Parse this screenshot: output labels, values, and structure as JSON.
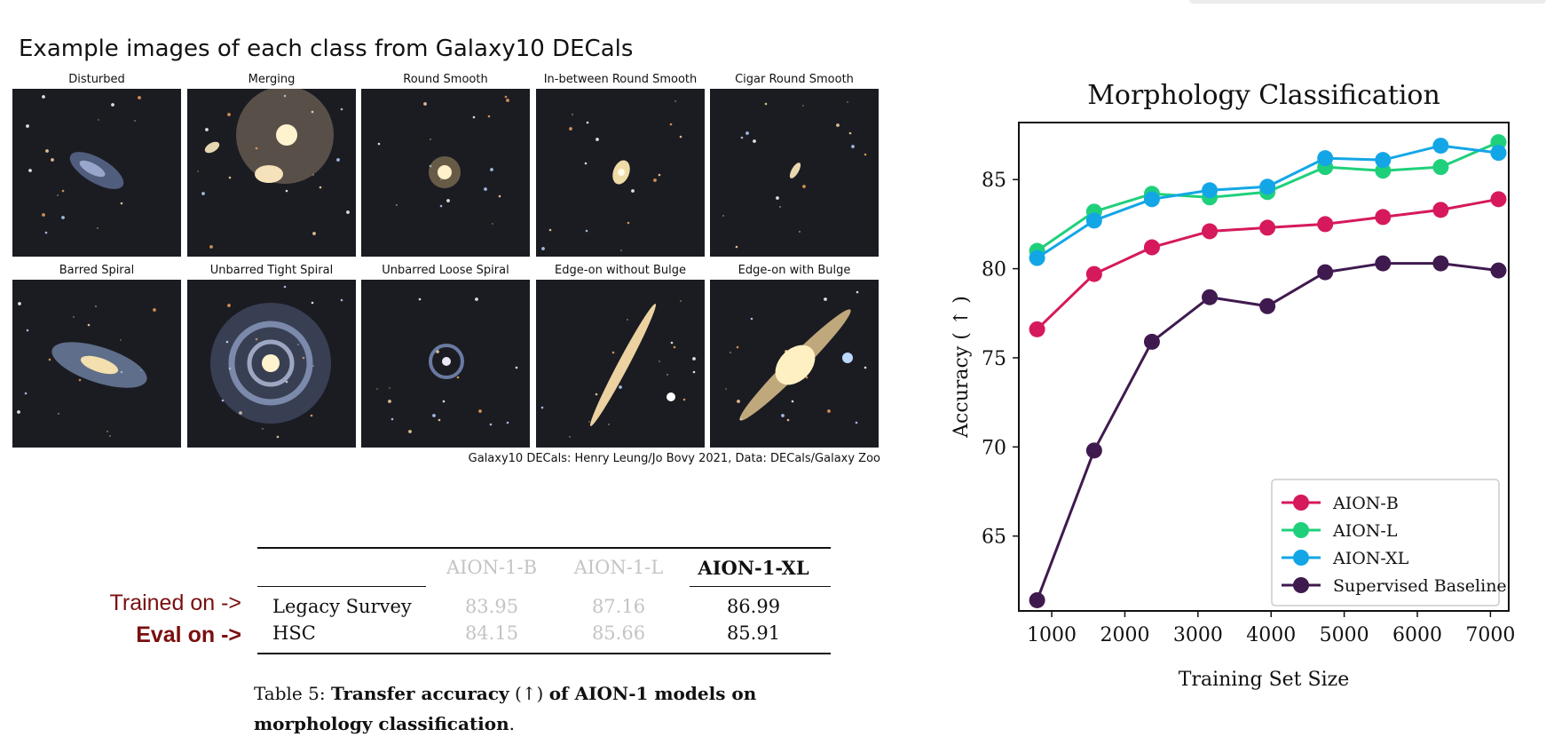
{
  "gallery": {
    "title": "Example images of each class from Galaxy10 DECals",
    "classes": [
      "Disturbed",
      "Merging",
      "Round Smooth",
      "In-between Round Smooth",
      "Cigar Round Smooth",
      "Barred Spiral",
      "Unbarred Tight Spiral",
      "Unbarred Loose Spiral",
      "Edge-on without Bulge",
      "Edge-on with Bulge"
    ],
    "credit": "Galaxy10 DECals: Henry Leung/Jo Bovy 2021, Data: DECals/Galaxy Zoo"
  },
  "table": {
    "headers": [
      "",
      "AION-1-B",
      "AION-1-L",
      "AION-1-XL"
    ],
    "rows": [
      {
        "label": "Legacy Survey",
        "values": [
          "83.95",
          "87.16",
          "86.99"
        ]
      },
      {
        "label": "HSC",
        "values": [
          "84.15",
          "85.66",
          "85.91"
        ]
      }
    ],
    "side_labels": {
      "trained": "Trained on ->",
      "eval": "Eval on ->"
    },
    "caption": {
      "prefix": "Table 5: ",
      "bold1": "Transfer accuracy",
      "arrow": " (↑) ",
      "bold2": "of AION-1 models on morphology classification",
      "suffix": "."
    }
  },
  "chart_data": {
    "type": "line",
    "title": "Morphology Classification",
    "xlabel": "Training Set Size",
    "ylabel": "Accuracy ( ↑ )",
    "xlim": [
      550,
      7250
    ],
    "ylim": [
      60.8,
      88.2
    ],
    "xticks": [
      1000,
      2000,
      3000,
      4000,
      5000,
      6000,
      7000
    ],
    "yticks": [
      65,
      70,
      75,
      80,
      85
    ],
    "grid": false,
    "legend_position": "bottom-right",
    "x": [
      800,
      1580,
      2370,
      3160,
      3950,
      4740,
      5530,
      6320,
      7110
    ],
    "series": [
      {
        "name": "Supervised Baseline",
        "color": "#3f1a4f",
        "values": [
          61.4,
          69.8,
          75.9,
          78.4,
          77.9,
          79.8,
          80.3,
          80.3,
          79.9
        ]
      },
      {
        "name": "AION-B",
        "color": "#d6195c",
        "values": [
          76.6,
          79.7,
          81.2,
          82.1,
          82.3,
          82.5,
          82.9,
          83.3,
          83.9
        ]
      },
      {
        "name": "AION-L",
        "color": "#1fd07b",
        "values": [
          81.0,
          83.2,
          84.2,
          84.0,
          84.3,
          85.7,
          85.5,
          85.7,
          87.1
        ]
      },
      {
        "name": "AION-XL",
        "color": "#13a6e6",
        "values": [
          80.6,
          82.7,
          83.9,
          84.4,
          84.6,
          86.2,
          86.1,
          86.9,
          86.5
        ]
      }
    ],
    "legend_order": [
      "AION-B",
      "AION-L",
      "AION-XL",
      "Supervised Baseline"
    ]
  }
}
